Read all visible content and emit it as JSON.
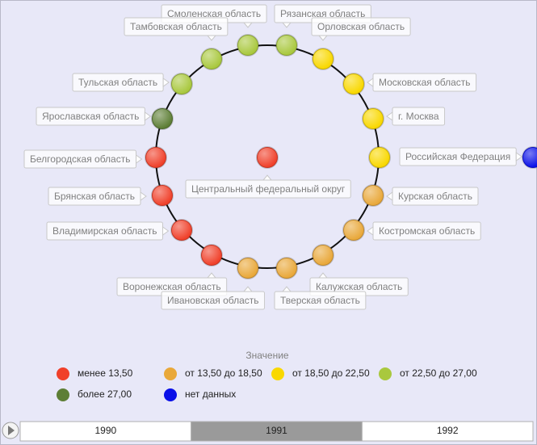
{
  "nodes": [
    {
      "label": "Смоленская область",
      "category": 3
    },
    {
      "label": "Рязанская область",
      "category": 3
    },
    {
      "label": "Тамбовская область",
      "category": 3
    },
    {
      "label": "Орловская область",
      "category": 2
    },
    {
      "label": "Тульская область",
      "category": 3
    },
    {
      "label": "Московская область",
      "category": 2
    },
    {
      "label": "Ярославская область",
      "category": 4
    },
    {
      "label": "г. Москва",
      "category": 2
    },
    {
      "label": "Белгородская область",
      "category": 0
    },
    {
      "category": 2
    },
    {
      "label": "Брянская область",
      "category": 0
    },
    {
      "label": "Курская область",
      "category": 1
    },
    {
      "label": "Владимирская область",
      "category": 0
    },
    {
      "label": "Костромская область",
      "category": 1
    },
    {
      "label": "Воронежская область",
      "category": 0
    },
    {
      "label": "Калужская область",
      "category": 1
    },
    {
      "label": "Ивановская область",
      "category": 1
    },
    {
      "label": "Тверская область",
      "category": 1
    },
    {
      "label": "Центральный федеральный округ",
      "category": 0
    },
    {
      "label": "Российская Федерация",
      "category": 5
    }
  ],
  "legend": {
    "title": "Значение",
    "items": [
      {
        "label": "менее 13,50",
        "color": "#f0402a"
      },
      {
        "label": "от 13,50 до 18,50",
        "color": "#e9a83a"
      },
      {
        "label": "от 18,50 до 22,50",
        "color": "#f9d800"
      },
      {
        "label": "от 22,50 до 27,00",
        "color": "#a9c83e"
      },
      {
        "label": "более 27,00",
        "color": "#5d7e35"
      },
      {
        "label": "нет данных",
        "color": "#0a10e8"
      }
    ]
  },
  "timeline": {
    "items": [
      "1990",
      "1991",
      "1992"
    ],
    "selected": 1
  }
}
